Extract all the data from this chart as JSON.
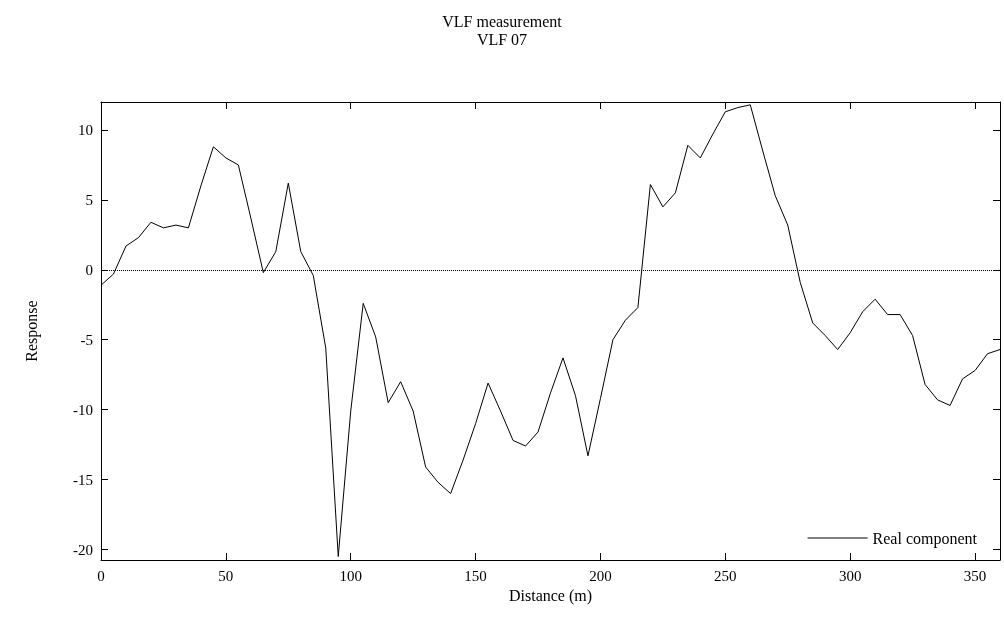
{
  "chart_data": {
    "type": "line",
    "title": "VLF measurement",
    "subtitle": "VLF 07",
    "xlabel": "Distance (m)",
    "ylabel": "Response",
    "x": [
      0,
      5,
      10,
      15,
      20,
      25,
      30,
      35,
      40,
      45,
      50,
      55,
      60,
      65,
      70,
      75,
      80,
      85,
      90,
      95,
      100,
      105,
      110,
      115,
      120,
      125,
      130,
      135,
      140,
      145,
      150,
      155,
      160,
      165,
      170,
      175,
      180,
      185,
      190,
      195,
      200,
      205,
      210,
      215,
      220,
      225,
      230,
      235,
      240,
      245,
      250,
      255,
      260,
      265,
      270,
      275,
      280,
      285,
      290,
      295,
      300,
      305,
      310,
      315,
      320,
      325,
      330,
      335,
      340,
      345,
      350,
      355,
      360
    ],
    "series": [
      {
        "name": "Real component",
        "color": "#000000",
        "values": [
          -1.1,
          -0.3,
          1.7,
          2.3,
          3.4,
          3.0,
          3.2,
          3.0,
          6.0,
          8.8,
          8.0,
          7.5,
          3.7,
          -0.2,
          1.3,
          6.2,
          1.3,
          -0.4,
          -5.6,
          -20.5,
          -10.1,
          -2.4,
          -4.8,
          -9.5,
          -8.0,
          -10.1,
          -14.1,
          -15.2,
          -16.0,
          -13.6,
          -11.0,
          -8.1,
          -10.1,
          -12.2,
          -12.6,
          -11.6,
          -8.8,
          -6.3,
          -9.0,
          -13.3,
          -9.2,
          -5.0,
          -3.6,
          -2.7,
          6.1,
          4.5,
          5.5,
          8.9,
          8.0,
          9.7,
          11.3,
          11.6,
          11.8,
          8.5,
          5.3,
          3.2,
          -0.9,
          -3.8,
          -4.7,
          -5.7,
          -4.5,
          -3.0,
          -2.1,
          -3.2,
          -3.2,
          -4.7,
          -8.2,
          -9.3,
          -9.7,
          -7.8,
          -7.2,
          -6.0,
          -5.7
        ]
      }
    ],
    "xlim": [
      0,
      360
    ],
    "xticks": [
      0,
      50,
      100,
      150,
      200,
      250,
      300,
      350
    ],
    "ylim": [
      -20.75,
      12
    ],
    "yticks": [
      -20,
      -15,
      -10,
      -5,
      0,
      5,
      10
    ],
    "ref_lines": [
      {
        "axis": "y",
        "value": 0,
        "line_style": "dotted",
        "color": "#000000"
      }
    ],
    "grid": false,
    "legend": "bottom right",
    "marker": "none",
    "line_style": "solid"
  }
}
